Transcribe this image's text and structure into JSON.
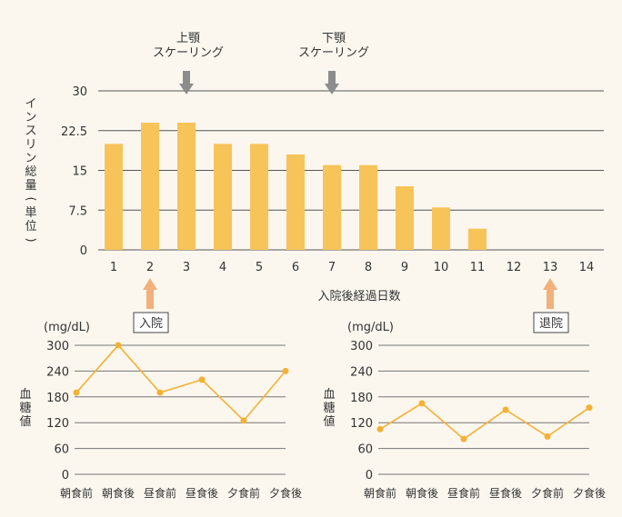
{
  "chart_data": [
    {
      "type": "bar",
      "ylabel": "インスリン総量(単位)",
      "xlabel": "入院後経過日数",
      "categories": [
        "1",
        "2",
        "3",
        "4",
        "5",
        "6",
        "7",
        "8",
        "9",
        "10",
        "11",
        "12",
        "13",
        "14"
      ],
      "values": [
        20,
        24,
        24,
        20,
        20,
        18,
        16,
        16,
        12,
        8,
        4,
        null,
        null,
        null
      ],
      "yticks": [
        "30",
        "22.5",
        "15",
        "7.5",
        "0"
      ],
      "ylim": [
        0,
        30
      ],
      "grid": true,
      "bar_color": "#f7c45a",
      "annotations": [
        {
          "lines": [
            "上顎",
            "スケーリング"
          ],
          "at_day": 3,
          "arrow": "down",
          "arrow_color": "#8c8c8c"
        },
        {
          "lines": [
            "下顎",
            "スケーリング"
          ],
          "at_day": 7,
          "arrow": "down",
          "arrow_color": "#8c8c8c"
        },
        {
          "label": "入院",
          "at_day": 2,
          "arrow": "up",
          "arrow_color": "#f2b07a"
        },
        {
          "label": "退院",
          "at_day": 13,
          "arrow": "up",
          "arrow_color": "#f2b07a"
        }
      ]
    },
    {
      "type": "line",
      "ylabel": "血糖値",
      "unit": "(mg/dL)",
      "categories": [
        "朝食前",
        "朝食後",
        "昼食前",
        "昼食後",
        "夕食前",
        "夕食後"
      ],
      "values": [
        190,
        300,
        190,
        220,
        125,
        240
      ],
      "yticks": [
        "300",
        "240",
        "180",
        "120",
        "60",
        "0"
      ],
      "ylim": [
        0,
        300
      ],
      "grid": true,
      "line_color": "#f5b133"
    },
    {
      "type": "line",
      "ylabel": "血糖値",
      "unit": "(mg/dL)",
      "categories": [
        "朝食前",
        "朝食後",
        "昼食前",
        "昼食後",
        "夕食前",
        "夕食後"
      ],
      "values": [
        105,
        165,
        82,
        150,
        88,
        155
      ],
      "yticks": [
        "300",
        "240",
        "180",
        "120",
        "60",
        "0"
      ],
      "ylim": [
        0,
        300
      ],
      "grid": true,
      "line_color": "#f5b133"
    }
  ]
}
